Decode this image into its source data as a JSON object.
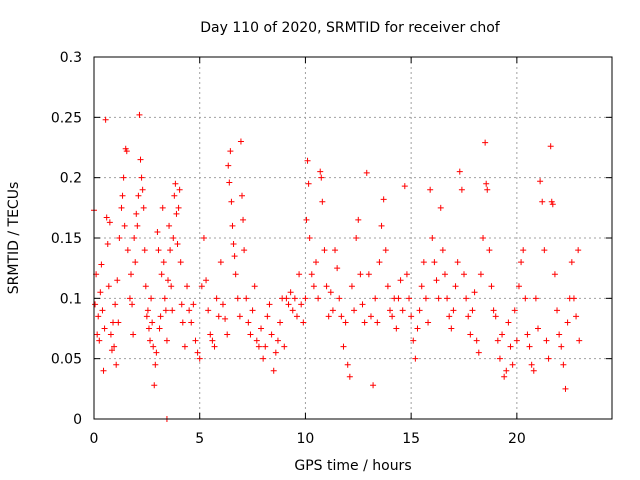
{
  "chart_data": {
    "type": "scatter",
    "title": "Day 110 of 2020, SRMTID for receiver chof",
    "xlabel": "GPS time / hours",
    "ylabel": "SRMTID / TECUs",
    "xlim": [
      0,
      24.5
    ],
    "ylim": [
      0,
      0.3
    ],
    "xticks": [
      0,
      5,
      10,
      15,
      20
    ],
    "xtick_labels": [
      "0",
      "5",
      "10",
      "15",
      "20"
    ],
    "yticks": [
      0,
      0.05,
      0.1,
      0.15,
      0.2,
      0.25,
      0.3
    ],
    "ytick_labels": [
      "0",
      "0.05",
      "0.1",
      "0.15",
      "0.2",
      "0.25",
      "0.3"
    ],
    "grid": true,
    "marker": "+",
    "series": [
      {
        "name": "SRMTID",
        "color": "#ff0000",
        "points": [
          [
            0.0,
            0.173
          ],
          [
            0.05,
            0.095
          ],
          [
            0.1,
            0.12
          ],
          [
            0.15,
            0.07
          ],
          [
            0.2,
            0.085
          ],
          [
            0.25,
            0.065
          ],
          [
            0.3,
            0.105
          ],
          [
            0.35,
            0.128
          ],
          [
            0.4,
            0.09
          ],
          [
            0.45,
            0.04
          ],
          [
            0.5,
            0.075
          ],
          [
            0.55,
            0.248
          ],
          [
            0.6,
            0.167
          ],
          [
            0.65,
            0.145
          ],
          [
            0.7,
            0.11
          ],
          [
            0.75,
            0.163
          ],
          [
            0.8,
            0.07
          ],
          [
            0.85,
            0.057
          ],
          [
            0.9,
            0.08
          ],
          [
            0.95,
            0.06
          ],
          [
            1.0,
            0.095
          ],
          [
            1.05,
            0.045
          ],
          [
            1.1,
            0.115
          ],
          [
            1.15,
            0.08
          ],
          [
            1.2,
            0.15
          ],
          [
            1.3,
            0.175
          ],
          [
            1.35,
            0.185
          ],
          [
            1.4,
            0.2
          ],
          [
            1.45,
            0.16
          ],
          [
            1.5,
            0.224
          ],
          [
            1.55,
            0.222
          ],
          [
            1.6,
            0.14
          ],
          [
            1.7,
            0.1
          ],
          [
            1.75,
            0.12
          ],
          [
            1.8,
            0.095
          ],
          [
            1.85,
            0.07
          ],
          [
            1.9,
            0.15
          ],
          [
            1.95,
            0.13
          ],
          [
            2.0,
            0.17
          ],
          [
            2.05,
            0.16
          ],
          [
            2.1,
            0.185
          ],
          [
            2.15,
            0.252
          ],
          [
            2.2,
            0.215
          ],
          [
            2.25,
            0.2
          ],
          [
            2.3,
            0.19
          ],
          [
            2.35,
            0.175
          ],
          [
            2.4,
            0.14
          ],
          [
            2.45,
            0.11
          ],
          [
            2.5,
            0.085
          ],
          [
            2.55,
            0.09
          ],
          [
            2.6,
            0.075
          ],
          [
            2.65,
            0.065
          ],
          [
            2.7,
            0.1
          ],
          [
            2.75,
            0.08
          ],
          [
            2.8,
            0.06
          ],
          [
            2.85,
            0.028
          ],
          [
            2.9,
            0.045
          ],
          [
            2.95,
            0.055
          ],
          [
            3.0,
            0.155
          ],
          [
            3.05,
            0.14
          ],
          [
            3.1,
            0.075
          ],
          [
            3.15,
            0.085
          ],
          [
            3.2,
            0.12
          ],
          [
            3.25,
            0.175
          ],
          [
            3.3,
            0.13
          ],
          [
            3.35,
            0.1
          ],
          [
            3.4,
            0.09
          ],
          [
            3.45,
            0.065
          ],
          [
            3.5,
            0.115
          ],
          [
            3.55,
            0.16
          ],
          [
            3.6,
            0.14
          ],
          [
            3.65,
            0.11
          ],
          [
            3.7,
            0.09
          ],
          [
            3.75,
            0.15
          ],
          [
            3.8,
            0.185
          ],
          [
            3.85,
            0.195
          ],
          [
            3.9,
            0.17
          ],
          [
            3.95,
            0.145
          ],
          [
            4.0,
            0.175
          ],
          [
            4.05,
            0.19
          ],
          [
            4.1,
            0.13
          ],
          [
            4.15,
            0.095
          ],
          [
            4.2,
            0.08
          ],
          [
            4.3,
            0.06
          ],
          [
            4.4,
            0.11
          ],
          [
            4.5,
            0.09
          ],
          [
            4.6,
            0.08
          ],
          [
            4.7,
            0.095
          ],
          [
            4.8,
            0.065
          ],
          [
            4.9,
            0.055
          ],
          [
            5.0,
            0.05
          ],
          [
            5.1,
            0.11
          ],
          [
            5.2,
            0.15
          ],
          [
            5.3,
            0.115
          ],
          [
            5.4,
            0.09
          ],
          [
            5.5,
            0.07
          ],
          [
            5.6,
            0.065
          ],
          [
            5.7,
            0.06
          ],
          [
            5.8,
            0.1
          ],
          [
            5.9,
            0.085
          ],
          [
            6.0,
            0.13
          ],
          [
            6.1,
            0.095
          ],
          [
            6.2,
            0.083
          ],
          [
            6.3,
            0.07
          ],
          [
            6.35,
            0.21
          ],
          [
            6.4,
            0.196
          ],
          [
            6.45,
            0.222
          ],
          [
            6.5,
            0.18
          ],
          [
            6.55,
            0.16
          ],
          [
            6.6,
            0.145
          ],
          [
            6.65,
            0.135
          ],
          [
            6.7,
            0.12
          ],
          [
            6.8,
            0.1
          ],
          [
            6.9,
            0.085
          ],
          [
            6.95,
            0.23
          ],
          [
            7.0,
            0.185
          ],
          [
            7.05,
            0.165
          ],
          [
            7.1,
            0.14
          ],
          [
            7.2,
            0.1
          ],
          [
            7.3,
            0.08
          ],
          [
            7.4,
            0.07
          ],
          [
            7.5,
            0.09
          ],
          [
            7.6,
            0.11
          ],
          [
            7.7,
            0.065
          ],
          [
            7.8,
            0.06
          ],
          [
            7.9,
            0.075
          ],
          [
            8.0,
            0.05
          ],
          [
            8.1,
            0.06
          ],
          [
            8.2,
            0.085
          ],
          [
            8.3,
            0.095
          ],
          [
            8.4,
            0.07
          ],
          [
            8.5,
            0.04
          ],
          [
            8.6,
            0.055
          ],
          [
            8.7,
            0.065
          ],
          [
            8.8,
            0.08
          ],
          [
            8.9,
            0.1
          ],
          [
            9.0,
            0.06
          ],
          [
            9.1,
            0.1
          ],
          [
            9.2,
            0.095
          ],
          [
            9.3,
            0.105
          ],
          [
            9.4,
            0.09
          ],
          [
            9.5,
            0.1
          ],
          [
            9.6,
            0.085
          ],
          [
            9.7,
            0.12
          ],
          [
            9.8,
            0.095
          ],
          [
            9.9,
            0.08
          ],
          [
            10.0,
            0.1
          ],
          [
            10.05,
            0.165
          ],
          [
            10.1,
            0.214
          ],
          [
            10.15,
            0.195
          ],
          [
            10.2,
            0.15
          ],
          [
            10.3,
            0.12
          ],
          [
            10.4,
            0.11
          ],
          [
            10.5,
            0.13
          ],
          [
            10.6,
            0.1
          ],
          [
            10.7,
            0.205
          ],
          [
            10.75,
            0.2
          ],
          [
            10.8,
            0.18
          ],
          [
            10.9,
            0.14
          ],
          [
            11.0,
            0.11
          ],
          [
            11.1,
            0.085
          ],
          [
            11.2,
            0.105
          ],
          [
            11.3,
            0.09
          ],
          [
            11.4,
            0.14
          ],
          [
            11.5,
            0.125
          ],
          [
            11.6,
            0.1
          ],
          [
            11.7,
            0.085
          ],
          [
            11.8,
            0.06
          ],
          [
            11.9,
            0.08
          ],
          [
            12.0,
            0.045
          ],
          [
            12.1,
            0.035
          ],
          [
            12.2,
            0.11
          ],
          [
            12.3,
            0.09
          ],
          [
            12.4,
            0.15
          ],
          [
            12.5,
            0.165
          ],
          [
            12.6,
            0.12
          ],
          [
            12.7,
            0.095
          ],
          [
            12.8,
            0.08
          ],
          [
            12.9,
            0.204
          ],
          [
            13.0,
            0.12
          ],
          [
            13.1,
            0.085
          ],
          [
            13.2,
            0.028
          ],
          [
            13.3,
            0.1
          ],
          [
            13.4,
            0.08
          ],
          [
            13.5,
            0.13
          ],
          [
            13.6,
            0.16
          ],
          [
            13.7,
            0.182
          ],
          [
            13.8,
            0.14
          ],
          [
            13.9,
            0.11
          ],
          [
            14.0,
            0.09
          ],
          [
            14.1,
            0.085
          ],
          [
            14.2,
            0.1
          ],
          [
            14.3,
            0.075
          ],
          [
            14.4,
            0.1
          ],
          [
            14.5,
            0.115
          ],
          [
            14.6,
            0.09
          ],
          [
            14.7,
            0.193
          ],
          [
            14.8,
            0.12
          ],
          [
            14.9,
            0.1
          ],
          [
            15.0,
            0.085
          ],
          [
            15.1,
            0.065
          ],
          [
            15.2,
            0.05
          ],
          [
            15.3,
            0.075
          ],
          [
            15.4,
            0.09
          ],
          [
            15.5,
            0.11
          ],
          [
            15.6,
            0.13
          ],
          [
            15.7,
            0.1
          ],
          [
            15.8,
            0.08
          ],
          [
            15.9,
            0.19
          ],
          [
            16.0,
            0.15
          ],
          [
            16.1,
            0.13
          ],
          [
            16.2,
            0.115
          ],
          [
            16.3,
            0.1
          ],
          [
            16.4,
            0.175
          ],
          [
            16.5,
            0.14
          ],
          [
            16.6,
            0.12
          ],
          [
            16.7,
            0.1
          ],
          [
            16.8,
            0.085
          ],
          [
            16.9,
            0.075
          ],
          [
            17.0,
            0.09
          ],
          [
            17.1,
            0.11
          ],
          [
            17.2,
            0.13
          ],
          [
            17.3,
            0.205
          ],
          [
            17.4,
            0.19
          ],
          [
            17.5,
            0.12
          ],
          [
            17.6,
            0.1
          ],
          [
            17.7,
            0.085
          ],
          [
            17.8,
            0.07
          ],
          [
            17.9,
            0.09
          ],
          [
            18.0,
            0.105
          ],
          [
            18.1,
            0.065
          ],
          [
            18.2,
            0.055
          ],
          [
            18.3,
            0.12
          ],
          [
            18.4,
            0.15
          ],
          [
            18.5,
            0.229
          ],
          [
            18.55,
            0.195
          ],
          [
            18.6,
            0.19
          ],
          [
            18.7,
            0.14
          ],
          [
            18.8,
            0.11
          ],
          [
            18.9,
            0.09
          ],
          [
            19.0,
            0.085
          ],
          [
            19.1,
            0.065
          ],
          [
            19.2,
            0.05
          ],
          [
            19.3,
            0.07
          ],
          [
            19.4,
            0.035
          ],
          [
            19.5,
            0.04
          ],
          [
            19.6,
            0.08
          ],
          [
            19.7,
            0.06
          ],
          [
            19.8,
            0.045
          ],
          [
            19.9,
            0.09
          ],
          [
            20.0,
            0.065
          ],
          [
            20.1,
            0.11
          ],
          [
            20.2,
            0.13
          ],
          [
            20.3,
            0.14
          ],
          [
            20.4,
            0.1
          ],
          [
            20.5,
            0.07
          ],
          [
            20.6,
            0.06
          ],
          [
            20.7,
            0.045
          ],
          [
            20.8,
            0.04
          ],
          [
            20.9,
            0.1
          ],
          [
            21.0,
            0.075
          ],
          [
            21.1,
            0.197
          ],
          [
            21.2,
            0.18
          ],
          [
            21.3,
            0.14
          ],
          [
            21.4,
            0.065
          ],
          [
            21.5,
            0.05
          ],
          [
            21.6,
            0.226
          ],
          [
            21.65,
            0.18
          ],
          [
            21.7,
            0.178
          ],
          [
            21.8,
            0.12
          ],
          [
            21.9,
            0.09
          ],
          [
            22.0,
            0.07
          ],
          [
            22.1,
            0.06
          ],
          [
            22.2,
            0.045
          ],
          [
            22.3,
            0.025
          ],
          [
            22.4,
            0.08
          ],
          [
            22.5,
            0.1
          ],
          [
            22.6,
            0.13
          ],
          [
            22.7,
            0.1
          ],
          [
            22.8,
            0.085
          ],
          [
            22.9,
            0.14
          ],
          [
            22.95,
            0.065
          ],
          [
            3.45,
            0.0
          ]
        ]
      }
    ]
  }
}
